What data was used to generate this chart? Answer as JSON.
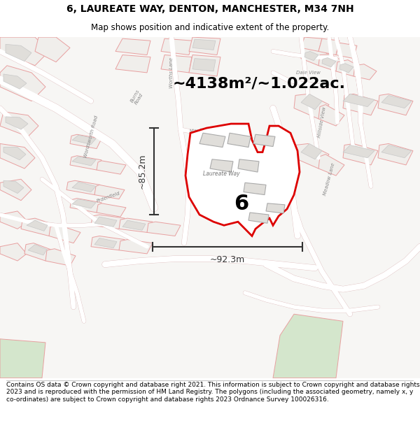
{
  "title_line1": "6, LAUREATE WAY, DENTON, MANCHESTER, M34 7NH",
  "title_line2": "Map shows position and indicative extent of the property.",
  "area_text": "~4138m²/~1.022ac.",
  "property_number": "6",
  "dim_vertical": "~85.2m",
  "dim_horizontal": "~92.3m",
  "footer_text": "Contains OS data © Crown copyright and database right 2021. This information is subject to Crown copyright and database rights 2023 and is reproduced with the permission of HM Land Registry. The polygons (including the associated geometry, namely x, y co-ordinates) are subject to Crown copyright and database rights 2023 Ordnance Survey 100026316.",
  "bg_color": "#ffffff",
  "map_bg": "#f7f6f4",
  "road_color": "#ffffff",
  "road_stroke": "#ddbbbb",
  "plot_outline_color": "#dd0000",
  "plot_fill_color": "#ffffff",
  "parcel_fill": "#f0eeeb",
  "parcel_stroke": "#e8a0a0",
  "building_fill": "#e0deda",
  "building_stroke": "#c8c8c8",
  "green_fill": "#d4e6cc",
  "street_label_color": "#999999",
  "title_color": "#000000",
  "footer_color": "#000000",
  "number_color": "#000000",
  "dim_color": "#333333",
  "title_fontsize": 10,
  "subtitle_fontsize": 8.5,
  "area_fontsize": 16,
  "number_fontsize": 22,
  "dim_fontsize": 9,
  "footer_fontsize": 6.5
}
